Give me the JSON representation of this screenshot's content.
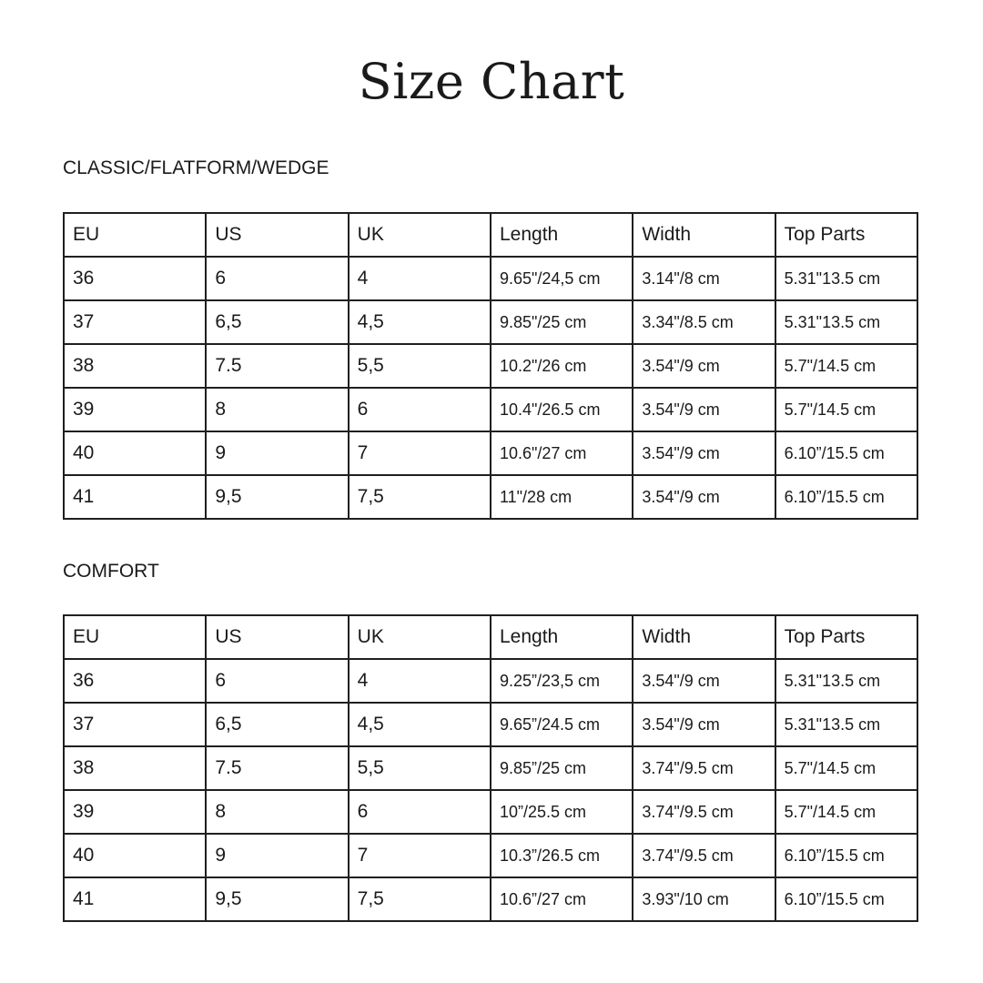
{
  "title": "Size Chart",
  "tables": [
    {
      "label": "CLASSIC/FLATFORM/WEDGE",
      "headers": [
        "EU",
        "US",
        "UK",
        "Length",
        "Width",
        "Top Parts"
      ],
      "rows": [
        [
          "36",
          "6",
          "4",
          "9.65\"/24,5 cm",
          "3.14\"/8 cm",
          "5.31\"13.5 cm"
        ],
        [
          "37",
          "6,5",
          "4,5",
          "9.85\"/25 cm",
          "3.34\"/8.5 cm",
          "5.31\"13.5 cm"
        ],
        [
          "38",
          "7.5",
          "5,5",
          "10.2\"/26 cm",
          "3.54\"/9 cm",
          "5.7\"/14.5 cm"
        ],
        [
          "39",
          "8",
          "6",
          "10.4\"/26.5 cm",
          "3.54\"/9 cm",
          "5.7\"/14.5 cm"
        ],
        [
          "40",
          "9",
          "7",
          "10.6\"/27 cm",
          "3.54\"/9 cm",
          "6.10”/15.5 cm"
        ],
        [
          "41",
          "9,5",
          "7,5",
          "11\"/28 cm",
          "3.54\"/9 cm",
          "6.10”/15.5 cm"
        ]
      ]
    },
    {
      "label": "COMFORT",
      "headers": [
        "EU",
        "US",
        "UK",
        "Length",
        "Width",
        "Top Parts"
      ],
      "rows": [
        [
          "36",
          "6",
          "4",
          "9.25”/23,5 cm",
          "3.54\"/9 cm",
          "5.31\"13.5 cm"
        ],
        [
          "37",
          "6,5",
          "4,5",
          "9.65”/24.5 cm",
          "3.54\"/9 cm",
          "5.31\"13.5 cm"
        ],
        [
          "38",
          "7.5",
          "5,5",
          "9.85”/25 cm",
          "3.74\"/9.5 cm",
          "5.7\"/14.5 cm"
        ],
        [
          "39",
          "8",
          "6",
          "10”/25.5 cm",
          "3.74\"/9.5 cm",
          "5.7\"/14.5 cm"
        ],
        [
          "40",
          "9",
          "7",
          "10.3”/26.5 cm",
          "3.74\"/9.5 cm",
          "6.10”/15.5 cm"
        ],
        [
          "41",
          "9,5",
          "7,5",
          "10.6”/27 cm",
          "3.93\"/10 cm",
          "6.10”/15.5 cm"
        ]
      ]
    }
  ]
}
